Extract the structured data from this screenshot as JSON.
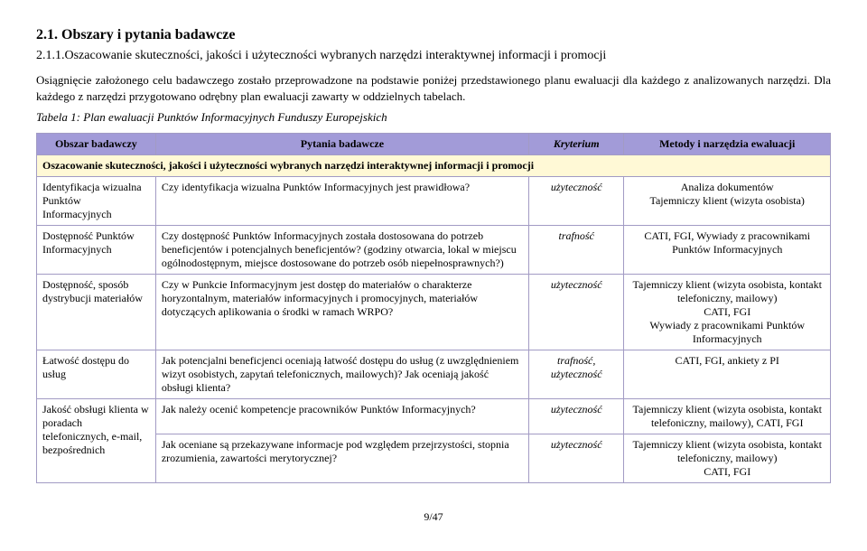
{
  "heading": "2.1. Obszary i pytania badawcze",
  "subheading": "2.1.1.Oszacowanie skuteczności, jakości i użyteczności wybranych narzędzi interaktywnej informacji i promocji",
  "para1": "Osiągnięcie założonego celu badawczego zostało przeprowadzone na podstawie poniżej przedstawionego planu ewaluacji dla każdego z analizowanych narzędzi. Dla każdego z narzędzi przygotowano odrębny plan ewaluacji zawarty w oddzielnych tabelach.",
  "tablecaption": "Tabela 1: Plan ewaluacji Punktów Informacyjnych Funduszy Europejskich",
  "headers": {
    "obszar": "Obszar badawczy",
    "pytania": "Pytania badawcze",
    "kryterium": "Kryterium",
    "metody": "Metody i narzędzia ewaluacji"
  },
  "sectionrow": "Oszacowanie skuteczności, jakości i użyteczności wybranych narzędzi interaktywnej informacji i promocji",
  "rows": [
    {
      "obszar": "Identyfikacja wizualna Punktów Informacyjnych",
      "pytania": "Czy identyfikacja wizualna Punktów Informacyjnych jest prawidłowa?",
      "kryterium": "użyteczność",
      "metody": "Analiza dokumentów\nTajemniczy klient (wizyta osobista)"
    },
    {
      "obszar": "Dostępność Punktów Informacyjnych",
      "pytania": "Czy dostępność Punktów Informacyjnych została dostosowana do potrzeb beneficjentów i potencjalnych beneficjentów? (godziny otwarcia, lokal w miejscu ogólnodostępnym, miejsce dostosowane do potrzeb osób niepełnosprawnych?)",
      "kryterium": "trafność",
      "metody": "CATI, FGI, Wywiady z pracownikami Punktów Informacyjnych"
    },
    {
      "obszar": "Dostępność, sposób dystrybucji materiałów",
      "pytania": "Czy w Punkcie Informacyjnym jest dostęp do materiałów o charakterze horyzontalnym, materiałów informacyjnych i promocyjnych, materiałów dotyczących aplikowania o środki w ramach WRPO?",
      "kryterium": "użyteczność",
      "metody": "Tajemniczy klient (wizyta osobista, kontakt telefoniczny, mailowy)\nCATI, FGI\nWywiady z pracownikami Punktów Informacyjnych"
    },
    {
      "obszar": "Łatwość dostępu do usług",
      "pytania": "Jak potencjalni beneficjenci oceniają łatwość dostępu do usług (z uwzględnieniem wizyt osobistych, zapytań telefonicznych, mailowych)? Jak oceniają jakość obsługi klienta?",
      "kryterium": "trafność, użyteczność",
      "metody": "CATI, FGI, ankiety z PI"
    },
    {
      "obszar": "Jakość obsługi klienta w poradach telefonicznych, e-mail, bezpośrednich",
      "pytania": "Jak należy ocenić kompetencje pracowników Punktów Informacyjnych?",
      "kryterium": "użyteczność",
      "metody": "Tajemniczy klient (wizyta osobista, kontakt telefoniczny, mailowy), CATI, FGI",
      "rowspan_obszar": 2
    },
    {
      "obszar": "",
      "pytania": "Jak oceniane są przekazywane informacje pod względem przejrzystości, stopnia zrozumienia, zawartości merytorycznej?",
      "kryterium": "użyteczność",
      "metody": "Tajemniczy klient (wizyta osobista, kontakt telefoniczny, mailowy)\nCATI, FGI",
      "skip_obszar": true
    }
  ],
  "pagenum": "9/47"
}
